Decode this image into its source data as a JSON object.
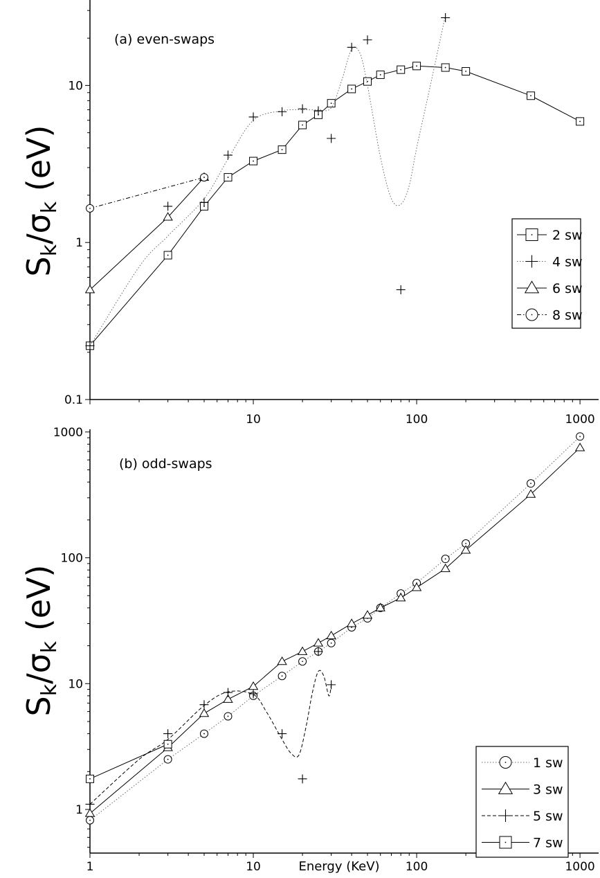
{
  "chart_data": [
    {
      "type": "line",
      "title": "",
      "annotation": "(a) even-swaps",
      "xlabel": "",
      "ylabel_main": "S",
      "ylabel_sub1": "k",
      "ylabel_sep": "/σ",
      "ylabel_sub2": "k",
      "ylabel_unit": " (eV)",
      "xscale": "log",
      "yscale": "log",
      "xlim": [
        1,
        1300
      ],
      "ylim": [
        0.1,
        35
      ],
      "xticks": [
        10,
        100,
        1000
      ],
      "xtick_labels": [
        "10",
        "100",
        "1000"
      ],
      "yticks": [
        0.1,
        1,
        10
      ],
      "ytick_labels": [
        "0.1",
        "1",
        "10"
      ],
      "legend_position": "right-middle",
      "series": [
        {
          "name": "2 sw",
          "marker": "square",
          "line": "solid",
          "curve": "straight",
          "x": [
            1,
            3,
            5,
            7,
            10,
            15,
            20,
            25,
            30,
            40,
            50,
            60,
            80,
            100,
            150,
            200,
            500,
            1000
          ],
          "y": [
            0.22,
            0.83,
            1.7,
            2.6,
            3.3,
            3.9,
            5.6,
            6.5,
            7.7,
            9.5,
            10.6,
            11.7,
            12.6,
            13.3,
            13.0,
            12.3,
            8.6,
            5.9
          ]
        },
        {
          "name": "4 sw",
          "marker": "plus",
          "line": "dotted",
          "curve": "spline",
          "x": [
            1,
            3,
            5,
            7,
            10,
            15,
            20,
            25,
            30,
            40,
            50,
            80,
            150
          ],
          "y": [
            0.22,
            1.7,
            1.8,
            3.6,
            6.3,
            6.8,
            7.1,
            6.9,
            4.6,
            17.5,
            19.5,
            0.5,
            27
          ],
          "curve_x": [
            1,
            2,
            3,
            5,
            7,
            10,
            15,
            20,
            25,
            30,
            35,
            40,
            45,
            50,
            60,
            70,
            80,
            90,
            100,
            120,
            150
          ],
          "curve_y": [
            0.22,
            0.7,
            1.1,
            1.9,
            3.4,
            6.0,
            6.9,
            7.0,
            7.0,
            7.2,
            11,
            17,
            16,
            10,
            3.5,
            1.9,
            1.75,
            2.3,
            4.0,
            9.5,
            28
          ]
        },
        {
          "name": "6 sw",
          "marker": "triangle",
          "line": "solid",
          "curve": "straight",
          "x": [
            1,
            3,
            5
          ],
          "y": [
            0.5,
            1.45,
            2.6
          ]
        },
        {
          "name": "8 sw",
          "marker": "circle",
          "line": "dashdot",
          "curve": "straight",
          "x": [
            1,
            5
          ],
          "y": [
            1.65,
            2.6
          ]
        }
      ]
    },
    {
      "type": "line",
      "title": "",
      "annotation": "(b) odd-swaps",
      "xlabel": "Energy (KeV)",
      "ylabel_main": "S",
      "ylabel_sub1": "k",
      "ylabel_sep": "/σ",
      "ylabel_sub2": "k",
      "ylabel_unit": " (eV)",
      "xscale": "log",
      "yscale": "log",
      "xlim": [
        1,
        1300
      ],
      "ylim": [
        0.45,
        1050
      ],
      "xticks": [
        1,
        10,
        100,
        1000
      ],
      "xtick_labels": [
        "1",
        "10",
        "100",
        "1000"
      ],
      "yticks": [
        1,
        10,
        100,
        1000
      ],
      "ytick_labels": [
        "1",
        "10",
        "100",
        "1000"
      ],
      "legend_position": "right-bottom",
      "series": [
        {
          "name": "1 sw",
          "marker": "circle",
          "line": "dotted",
          "curve": "straight",
          "x": [
            1,
            3,
            5,
            7,
            10,
            15,
            20,
            25,
            30,
            40,
            50,
            60,
            80,
            100,
            150,
            200,
            500,
            1000
          ],
          "y": [
            0.82,
            2.5,
            4.0,
            5.5,
            8.0,
            11.5,
            15,
            18,
            21,
            28,
            33,
            40,
            52,
            63,
            98,
            130,
            390,
            920
          ]
        },
        {
          "name": "3 sw",
          "marker": "triangle",
          "line": "solid",
          "curve": "straight",
          "x": [
            1,
            3,
            5,
            7,
            10,
            15,
            20,
            25,
            30,
            40,
            50,
            60,
            80,
            100,
            150,
            200,
            500,
            1000
          ],
          "y": [
            0.93,
            3.1,
            5.8,
            7.5,
            9.5,
            15,
            18,
            21,
            24,
            30,
            35,
            40,
            48,
            58,
            82,
            115,
            320,
            750
          ]
        },
        {
          "name": "5 sw",
          "marker": "plus",
          "line": "dashed",
          "curve": "spline",
          "x": [
            1,
            3,
            5,
            7,
            10,
            15,
            20,
            25,
            30
          ],
          "y": [
            1.1,
            4.0,
            6.8,
            8.5,
            8.3,
            4.0,
            1.75,
            18,
            9.8
          ],
          "curve_x": [
            1,
            2,
            3,
            5,
            7,
            10,
            12,
            15,
            17,
            19,
            21,
            23,
            25,
            27,
            29,
            30
          ],
          "curve_y": [
            1.1,
            2.5,
            3.6,
            6.7,
            8.6,
            8.2,
            6.0,
            3.6,
            2.8,
            2.7,
            4.5,
            8.5,
            12.5,
            11.5,
            8.0,
            9.8
          ]
        },
        {
          "name": "7 sw",
          "marker": "square",
          "line": "solid",
          "curve": "straight",
          "x": [
            1,
            3
          ],
          "y": [
            1.75,
            3.3
          ]
        }
      ]
    }
  ]
}
